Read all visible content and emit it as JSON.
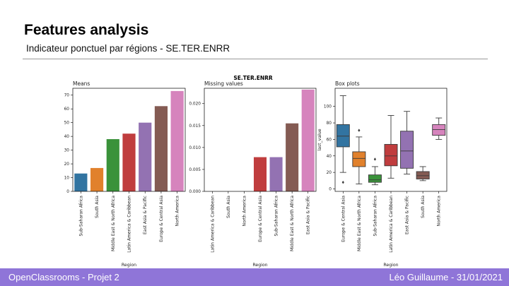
{
  "slide": {
    "title": "Features analysis",
    "subtitle": "Indicateur ponctuel par régions - SE.TER.ENRR"
  },
  "footer": {
    "left": "OpenClassrooms - Projet 2",
    "right": "Léo Guillaume - 31/01/2021"
  },
  "figure": {
    "suptitle": "SE.TER.ENRR"
  },
  "chart_data": [
    {
      "type": "bar",
      "title": "Means",
      "xlabel": "Region",
      "ylabel": "",
      "ylim": [
        0,
        75
      ],
      "yticks": [
        0,
        10,
        20,
        30,
        40,
        50,
        60,
        70
      ],
      "categories": [
        "Sub-Saharan Africa",
        "South Asia",
        "Middle East & North Africa",
        "Latin America & Caribbean",
        "East Asia & Pacific",
        "Europe & Central Asia",
        "North America"
      ],
      "values": [
        13,
        17,
        38,
        42,
        50,
        62,
        73
      ],
      "colors": [
        "#3274a1",
        "#e1812c",
        "#3a923a",
        "#c03d3e",
        "#9372b2",
        "#845b53",
        "#d684bd"
      ]
    },
    {
      "type": "bar",
      "title": "Missing values",
      "xlabel": "Region",
      "ylabel": "",
      "ylim": [
        0,
        0.0235
      ],
      "yticks": [
        "0.000",
        "0.005",
        "0.010",
        "0.015",
        "0.020"
      ],
      "categories": [
        "Latin America & Caribbean",
        "South Asia",
        "North America",
        "Europe & Central Asia",
        "Sub-Saharan Africa",
        "Middle East & North Africa",
        "East Asia & Pacific"
      ],
      "values": [
        0,
        0,
        0,
        0.0078,
        0.0078,
        0.0155,
        0.0232
      ],
      "colors": [
        "#3274a1",
        "#e1812c",
        "#3a923a",
        "#c03d3e",
        "#9372b2",
        "#845b53",
        "#d684bd"
      ]
    },
    {
      "type": "box",
      "title": "Box plots",
      "xlabel": "Region",
      "ylabel": "last_value",
      "ylim": [
        -3,
        122
      ],
      "yticks": [
        0,
        20,
        40,
        60,
        80,
        100
      ],
      "categories": [
        "Europe & Central Asia",
        "Middle East & North Africa",
        "Sub-Saharan Africa",
        "Latin America & Caribbean",
        "East Asia & Pacific",
        "South Asia",
        "North America"
      ],
      "colors": [
        "#3274a1",
        "#e1812c",
        "#3a923a",
        "#c03d3e",
        "#9372b2",
        "#845b53",
        "#d684bd"
      ],
      "boxes": [
        {
          "whislo": 20,
          "q1": 51,
          "med": 64,
          "q3": 78,
          "whishi": 113,
          "fliers": [
            8
          ]
        },
        {
          "whislo": 6,
          "q1": 27,
          "med": 37,
          "q3": 45,
          "whishi": 63,
          "fliers": [
            71
          ]
        },
        {
          "whislo": 5,
          "q1": 8,
          "med": 11,
          "q3": 17,
          "whishi": 27,
          "fliers": [
            36
          ]
        },
        {
          "whislo": 13,
          "q1": 28,
          "med": 40,
          "q3": 54,
          "whishi": 89,
          "fliers": []
        },
        {
          "whislo": 18,
          "q1": 25,
          "med": 46,
          "q3": 70,
          "whishi": 94,
          "fliers": []
        },
        {
          "whislo": 10,
          "q1": 12,
          "med": 16,
          "q3": 21,
          "whishi": 27,
          "fliers": []
        },
        {
          "whislo": 60,
          "q1": 65,
          "med": 72,
          "q3": 78,
          "whishi": 86,
          "fliers": []
        }
      ]
    }
  ]
}
